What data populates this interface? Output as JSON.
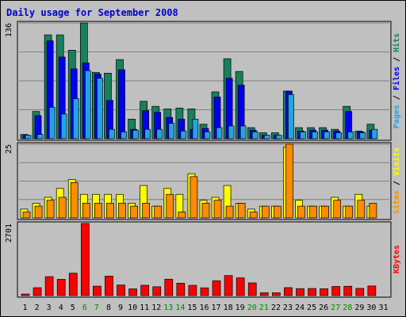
{
  "chart_data": {
    "type": "bar",
    "title": "Daily usage for September 2008",
    "categories": [
      "1",
      "2",
      "3",
      "4",
      "5",
      "6",
      "7",
      "8",
      "9",
      "10",
      "11",
      "12",
      "13",
      "14",
      "15",
      "16",
      "17",
      "18",
      "19",
      "20",
      "21",
      "22",
      "23",
      "24",
      "25",
      "26",
      "27",
      "28",
      "29",
      "30",
      "31"
    ],
    "weekend_days": [
      "6",
      "7",
      "13",
      "14",
      "20",
      "21",
      "27",
      "28"
    ],
    "panels": [
      {
        "key": "top",
        "max_label": "136",
        "ylim": [
          0,
          136
        ],
        "grid": true,
        "series": [
          {
            "name": "Hits",
            "color": "#18805c",
            "values": [
              5,
              32,
              122,
              122,
              104,
              136,
              78,
              77,
              93,
              23,
              44,
              38,
              35,
              36,
              35,
              17,
              55,
              94,
              79,
              13,
              7,
              7,
              56,
              13,
              13,
              13,
              11,
              38,
              9,
              17,
              null
            ]
          },
          {
            "name": "Files",
            "color": "#0000ee",
            "values": [
              4,
              27,
              115,
              96,
              82,
              89,
              76,
              45,
              81,
              11,
              33,
              31,
              25,
              23,
              11,
              12,
              49,
              71,
              63,
              10,
              4,
              4,
              56,
              9,
              10,
              10,
              9,
              32,
              8,
              10,
              null
            ]
          },
          {
            "name": "Pages",
            "color": "#22a4e4",
            "values": [
              4,
              5,
              37,
              29,
              47,
              80,
              71,
              11,
              8,
              10,
              11,
              11,
              18,
              9,
              23,
              8,
              13,
              15,
              15,
              8,
              4,
              4,
              52,
              8,
              8,
              8,
              7,
              8,
              7,
              11,
              null
            ]
          }
        ]
      },
      {
        "key": "middle",
        "max_label": "25",
        "ylim": [
          0,
          25
        ],
        "grid": true,
        "series": [
          {
            "name": "Visits",
            "color": "#fcfc00",
            "values": [
              3,
              5,
              7,
              10,
              13,
              8,
              8,
              8,
              8,
              5,
              11,
              4,
              10,
              8,
              15,
              6,
              7,
              11,
              5,
              3,
              4,
              4,
              24,
              6,
              4,
              4,
              7,
              4,
              8,
              4,
              null
            ]
          },
          {
            "name": "Sites",
            "color": "#fc8c00",
            "values": [
              2,
              4,
              6,
              7,
              12,
              5,
              5,
              5,
              5,
              4,
              5,
              4,
              8,
              2,
              14,
              5,
              6,
              4,
              5,
              2,
              4,
              4,
              25,
              4,
              4,
              4,
              6,
              4,
              6,
              5,
              null
            ]
          }
        ]
      },
      {
        "key": "bottom",
        "max_label": "2701",
        "ylim": [
          0,
          2701
        ],
        "grid": false,
        "series": [
          {
            "name": "KBytes",
            "color": "#fc0000",
            "values": [
              59,
              295,
              710,
              610,
              839,
              2701,
              354,
              730,
              396,
              251,
              387,
              331,
              615,
              465,
              385,
              291,
              556,
              751,
              665,
              476,
              106,
              105,
              298,
              260,
              265,
              258,
              343,
              349,
              270,
              360,
              null
            ]
          }
        ]
      }
    ],
    "right_labels": {
      "top": [
        {
          "text": "Pages",
          "color": "#22a4e4"
        },
        {
          "text": " / ",
          "color": "#000000"
        },
        {
          "text": "Files",
          "color": "#0000ee"
        },
        {
          "text": " / ",
          "color": "#000000"
        },
        {
          "text": "Hits",
          "color": "#18805c"
        }
      ],
      "middle": [
        {
          "text": "Sites",
          "color": "#fc8c00"
        },
        {
          "text": " / ",
          "color": "#000000"
        },
        {
          "text": "Visits",
          "color": "#fcfc00"
        }
      ],
      "bottom": [
        {
          "text": "KBytes",
          "color": "#fc0000"
        }
      ]
    },
    "colors": {
      "title": "#0000cc",
      "weekday_label": "#000000",
      "weekend_label": "#008800",
      "background": "#c0c0c0",
      "grid": "#808080"
    }
  }
}
